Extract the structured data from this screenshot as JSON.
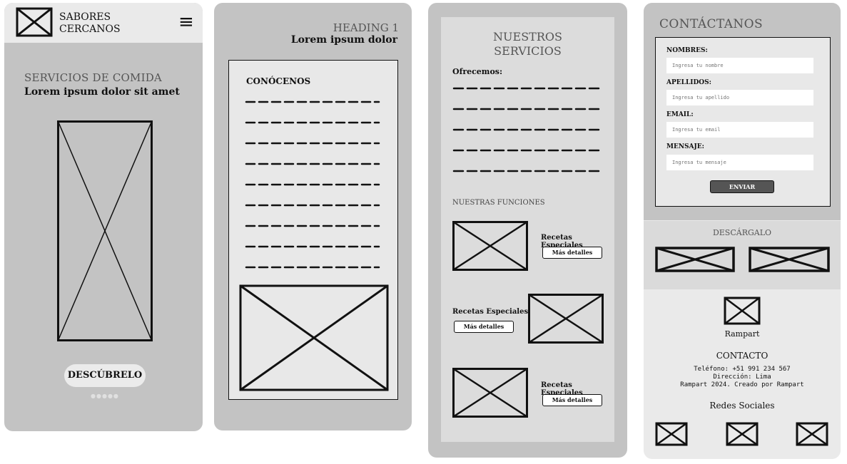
{
  "screen1": {
    "brand_line1": "SABORES",
    "brand_line2": "CERCANOS",
    "menu_icon": "≡",
    "kicker": "SERVICIOS DE COMIDA",
    "lead": "Lorem ipsum dolor sit amet",
    "cta_label": "DESCÚBRELO",
    "pager": "●●●●●"
  },
  "screen2": {
    "heading": "HEADING 1",
    "subheading": "Lorem ipsum dolor",
    "card_title": "CONÓCENOS"
  },
  "screen3": {
    "title_line1": "NUESTROS",
    "title_line2": "SERVICIOS",
    "offer_label": "Ofrecemos:",
    "functions_title": "NUESTRAS FUNCIONES",
    "features": [
      {
        "label": "Recetas Especiales",
        "button": "Más detalles"
      },
      {
        "label": "Recetas Especiales",
        "button": "Más detalles"
      },
      {
        "label": "Recetas Especiales",
        "button": "Más detalles"
      }
    ]
  },
  "screen4": {
    "title": "CONTÁCTANOS",
    "fields": [
      {
        "label": "NOMBRES:",
        "placeholder": "Ingresa tu nombre"
      },
      {
        "label": "APELLIDOS:",
        "placeholder": "Ingresa tu apellido"
      },
      {
        "label": "EMAIL:",
        "placeholder": "Ingresa tu email"
      },
      {
        "label": "MENSAJE:",
        "placeholder": "Ingresa tu mensaje"
      }
    ],
    "send_label": "ENVIAR",
    "download_title": "DESCÁRGALO",
    "footer_brand": "Rampart",
    "contact_title": "CONTACTO",
    "phone": "Teléfono: +51 991 234 567",
    "address": "Dirección: Lima",
    "copyright": "Rampart 2024. Creado por Rampart",
    "social_title": "Redes Sociales"
  }
}
